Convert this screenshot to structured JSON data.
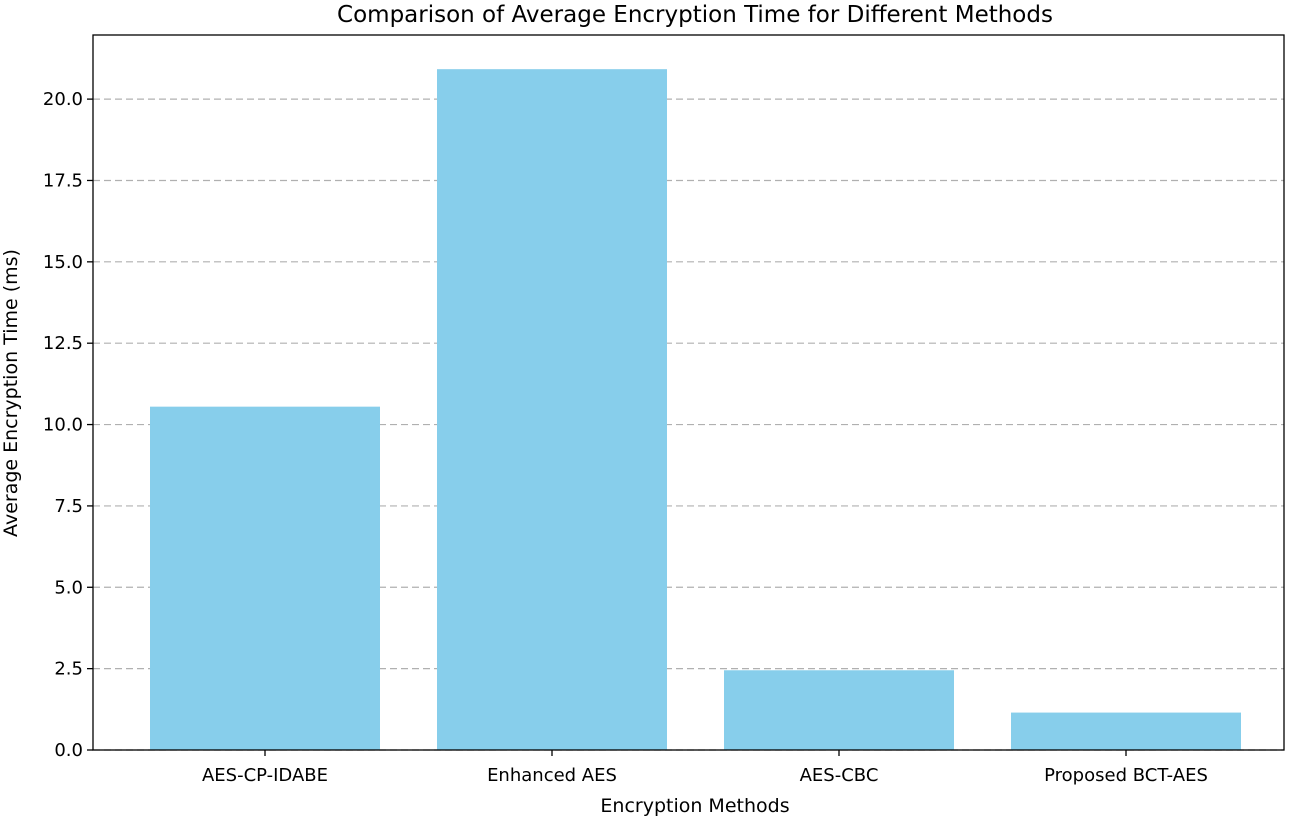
{
  "chart_data": {
    "type": "bar",
    "title": "Comparison of Average Encryption Time for Different Methods",
    "xlabel": "Encryption Methods",
    "ylabel": "Average Encryption Time (ms)",
    "categories": [
      "AES-CP-IDABE",
      "Enhanced AES",
      "AES-CBC",
      "Proposed BCT-AES"
    ],
    "values": [
      10.55,
      20.92,
      2.45,
      1.15
    ],
    "ylim": [
      0,
      21.97
    ],
    "yticks": [
      0.0,
      2.5,
      5.0,
      7.5,
      10.0,
      12.5,
      15.0,
      17.5,
      20.0
    ],
    "ytick_labels": [
      "0.0",
      "2.5",
      "5.0",
      "7.5",
      "10.0",
      "12.5",
      "15.0",
      "17.5",
      "20.0"
    ],
    "grid": "y-dashed",
    "bar_color": "#87ceeb",
    "grid_color": "#b0b0b0"
  }
}
